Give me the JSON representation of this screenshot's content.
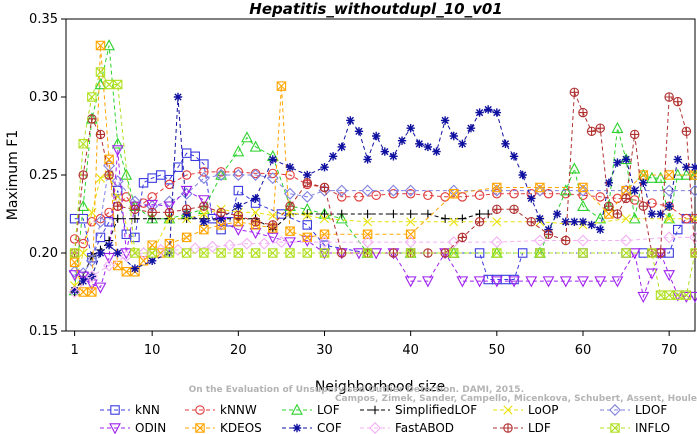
{
  "chart_data": {
    "type": "line",
    "title": "Hepatitis_withoutdupl_10_v01",
    "xlabel": "Neighborhood size",
    "ylabel": "Maximum F1",
    "xlim": [
      0,
      73
    ],
    "ylim": [
      0.15,
      0.35
    ],
    "xticks": [
      1,
      10,
      20,
      30,
      40,
      50,
      60,
      70
    ],
    "yticks": [
      0.15,
      0.2,
      0.25,
      0.3,
      0.35
    ],
    "ytick_labels": [
      "0.15",
      "0.20",
      "0.25",
      "0.30",
      "0.35"
    ],
    "grid": false,
    "credit": [
      "Campos, Zimek, Sander, Campello, Micenkova, Schubert, Assent, Houle",
      "On the Evaluation of Unsupervised Outlier Detection. DAMI, 2015."
    ],
    "series": [
      {
        "name": "kNN",
        "color": "#3a3ae0",
        "marker": "square",
        "x": [
          1,
          2,
          3,
          4,
          5,
          6,
          7,
          8,
          9,
          10,
          11,
          12,
          13,
          14,
          15,
          16,
          17,
          18,
          19,
          20,
          22,
          25,
          28,
          30,
          35,
          40,
          45,
          48,
          49,
          50,
          51,
          52,
          53,
          55,
          60,
          65,
          67,
          69,
          70,
          71,
          72,
          73
        ],
        "y": [
          0.222,
          0.222,
          0.197,
          0.21,
          0.22,
          0.24,
          0.212,
          0.21,
          0.245,
          0.248,
          0.25,
          0.247,
          0.255,
          0.264,
          0.262,
          0.257,
          0.222,
          0.215,
          0.22,
          0.24,
          0.232,
          0.225,
          0.218,
          0.205,
          0.2,
          0.2,
          0.2,
          0.2,
          0.183,
          0.183,
          0.183,
          0.183,
          0.2,
          0.2,
          0.2,
          0.2,
          0.2,
          0.2,
          0.2,
          0.215,
          0.222,
          0.222
        ]
      },
      {
        "name": "kNNW",
        "color": "#e03a3a",
        "marker": "circle",
        "x": [
          1,
          2,
          3,
          4,
          5,
          6,
          7,
          8,
          9,
          10,
          12,
          14,
          16,
          18,
          20,
          22,
          24,
          26,
          28,
          30,
          32,
          34,
          36,
          38,
          40,
          42,
          44,
          46,
          48,
          50,
          52,
          54,
          56,
          58,
          60,
          62,
          64,
          66,
          68,
          70,
          72,
          73
        ],
        "y": [
          0.209,
          0.206,
          0.22,
          0.222,
          0.226,
          0.23,
          0.236,
          0.23,
          0.232,
          0.236,
          0.244,
          0.25,
          0.252,
          0.252,
          0.252,
          0.251,
          0.251,
          0.25,
          0.244,
          0.242,
          0.236,
          0.236,
          0.237,
          0.238,
          0.238,
          0.237,
          0.236,
          0.236,
          0.237,
          0.238,
          0.238,
          0.238,
          0.238,
          0.238,
          0.237,
          0.236,
          0.235,
          0.234,
          0.232,
          0.23,
          0.222,
          0.222
        ]
      },
      {
        "name": "LOF",
        "color": "#2ed22e",
        "marker": "triangle-up",
        "x": [
          1,
          2,
          3,
          4,
          5,
          6,
          7,
          8,
          10,
          12,
          14,
          16,
          18,
          20,
          21,
          22,
          24,
          26,
          28,
          30,
          32,
          35,
          40,
          45,
          50,
          55,
          58,
          59,
          60,
          62,
          63,
          64,
          65,
          66,
          67,
          68,
          69,
          70,
          71,
          72,
          73
        ],
        "y": [
          0.176,
          0.23,
          0.286,
          0.308,
          0.333,
          0.27,
          0.25,
          0.23,
          0.222,
          0.222,
          0.225,
          0.228,
          0.25,
          0.265,
          0.274,
          0.268,
          0.262,
          0.23,
          0.228,
          0.225,
          0.222,
          0.2,
          0.2,
          0.2,
          0.2,
          0.2,
          0.24,
          0.254,
          0.23,
          0.222,
          0.23,
          0.28,
          0.26,
          0.222,
          0.25,
          0.248,
          0.248,
          0.222,
          0.25,
          0.25,
          0.25
        ]
      },
      {
        "name": "SimplifiedLOF",
        "color": "#000000",
        "marker": "plus",
        "x": [
          1,
          2,
          3,
          4,
          5,
          6,
          8,
          10,
          12,
          14,
          16,
          18,
          20,
          22,
          24,
          26,
          28,
          30,
          32,
          35,
          38,
          40,
          42,
          44,
          46,
          48,
          49
        ],
        "y": [
          0.175,
          0.185,
          0.198,
          0.202,
          0.208,
          0.222,
          0.222,
          0.222,
          0.222,
          0.222,
          0.222,
          0.222,
          0.222,
          0.222,
          0.215,
          0.225,
          0.225,
          0.225,
          0.225,
          0.225,
          0.225,
          0.225,
          0.225,
          0.222,
          0.222,
          0.225,
          0.225
        ]
      },
      {
        "name": "LoOP",
        "color": "#e8e00a",
        "marker": "x",
        "x": [
          1,
          2,
          3,
          4,
          5,
          6,
          8,
          10,
          12,
          14,
          16,
          18,
          20,
          22,
          24,
          26,
          28,
          30,
          35,
          40,
          45,
          50,
          55,
          60,
          65,
          70,
          73
        ],
        "y": [
          0.179,
          0.2,
          0.226,
          0.248,
          0.25,
          0.236,
          0.2,
          0.2,
          0.222,
          0.222,
          0.225,
          0.228,
          0.226,
          0.226,
          0.224,
          0.226,
          0.224,
          0.222,
          0.22,
          0.22,
          0.22,
          0.22,
          0.22,
          0.218,
          0.222,
          0.222,
          0.222
        ]
      },
      {
        "name": "LDOF",
        "color": "#8080e0",
        "marker": "diamond",
        "x": [
          1,
          2,
          3,
          4,
          5,
          6,
          8,
          10,
          12,
          14,
          16,
          18,
          20,
          22,
          24,
          26,
          28,
          30,
          32,
          35,
          38,
          40,
          45,
          50,
          55,
          60,
          65,
          70,
          73
        ],
        "y": [
          0.188,
          0.187,
          0.195,
          0.22,
          0.256,
          0.246,
          0.233,
          0.23,
          0.233,
          0.238,
          0.248,
          0.25,
          0.25,
          0.25,
          0.248,
          0.238,
          0.236,
          0.24,
          0.24,
          0.24,
          0.24,
          0.24,
          0.24,
          0.24,
          0.24,
          0.24,
          0.24,
          0.24,
          0.24
        ]
      },
      {
        "name": "ODIN",
        "color": "#a020f0",
        "marker": "triangle-down",
        "x": [
          1,
          2,
          3,
          4,
          5,
          6,
          7,
          8,
          10,
          12,
          14,
          16,
          18,
          20,
          22,
          24,
          26,
          28,
          30,
          32,
          34,
          36,
          38,
          40,
          42,
          44,
          46,
          48,
          50,
          52,
          54,
          56,
          58,
          60,
          62,
          64,
          66,
          67,
          68,
          69,
          70,
          71,
          72,
          73
        ],
        "y": [
          0.186,
          0.185,
          0.18,
          0.178,
          0.197,
          0.266,
          0.2,
          0.23,
          0.231,
          0.23,
          0.24,
          0.234,
          0.22,
          0.215,
          0.213,
          0.21,
          0.207,
          0.208,
          0.2,
          0.2,
          0.2,
          0.2,
          0.2,
          0.182,
          0.182,
          0.2,
          0.182,
          0.182,
          0.182,
          0.182,
          0.182,
          0.182,
          0.182,
          0.182,
          0.182,
          0.182,
          0.2,
          0.172,
          0.187,
          0.2,
          0.186,
          0.173,
          0.172,
          0.172
        ]
      },
      {
        "name": "KDEOS",
        "color": "#ffa500",
        "marker": "square-x",
        "x": [
          1,
          2,
          3,
          4,
          5,
          6,
          7,
          8,
          9,
          10,
          11,
          12,
          14,
          16,
          18,
          20,
          22,
          24,
          25,
          26,
          28,
          30,
          35,
          40,
          45,
          50,
          55,
          60,
          63,
          65,
          67,
          70,
          73
        ],
        "y": [
          0.194,
          0.175,
          0.175,
          0.333,
          0.26,
          0.192,
          0.188,
          0.188,
          0.195,
          0.205,
          0.2,
          0.206,
          0.21,
          0.215,
          0.218,
          0.22,
          0.218,
          0.216,
          0.307,
          0.214,
          0.21,
          0.212,
          0.212,
          0.212,
          0.238,
          0.242,
          0.242,
          0.242,
          0.225,
          0.24,
          0.25,
          0.25,
          0.25
        ]
      },
      {
        "name": "COF",
        "color": "#1010a0",
        "marker": "star",
        "x": [
          1,
          2,
          3,
          4,
          5,
          6,
          8,
          10,
          12,
          13,
          14,
          16,
          18,
          20,
          22,
          24,
          26,
          28,
          30,
          31,
          32,
          33,
          34,
          35,
          36,
          37,
          38,
          39,
          40,
          41,
          42,
          43,
          44,
          45,
          46,
          47,
          48,
          49,
          50,
          51,
          52,
          53,
          54,
          55,
          56,
          57,
          58,
          59,
          60,
          61,
          62,
          63,
          64,
          65,
          66,
          67,
          68,
          69,
          70,
          71,
          72,
          73
        ],
        "y": [
          0.176,
          0.182,
          0.185,
          0.2,
          0.205,
          0.2,
          0.19,
          0.195,
          0.2,
          0.3,
          0.225,
          0.22,
          0.222,
          0.23,
          0.235,
          0.26,
          0.255,
          0.25,
          0.255,
          0.262,
          0.268,
          0.285,
          0.278,
          0.26,
          0.275,
          0.265,
          0.262,
          0.272,
          0.28,
          0.27,
          0.268,
          0.265,
          0.285,
          0.275,
          0.27,
          0.28,
          0.29,
          0.292,
          0.29,
          0.27,
          0.262,
          0.25,
          0.235,
          0.222,
          0.215,
          0.225,
          0.22,
          0.22,
          0.22,
          0.218,
          0.215,
          0.245,
          0.258,
          0.26,
          0.24,
          0.245,
          0.225,
          0.225,
          0.23,
          0.26,
          0.255,
          0.255
        ]
      },
      {
        "name": "FastABOD",
        "color": "#f4b0f4",
        "marker": "diamond",
        "x": [
          1,
          3,
          5,
          7,
          9,
          11,
          13,
          15,
          17,
          19,
          21,
          23,
          25,
          30,
          35,
          40,
          45,
          50,
          55,
          60,
          65,
          70,
          73
        ],
        "y": [
          0.175,
          0.185,
          0.192,
          0.198,
          0.2,
          0.202,
          0.202,
          0.203,
          0.204,
          0.205,
          0.206,
          0.206,
          0.207,
          0.207,
          0.207,
          0.207,
          0.207,
          0.207,
          0.208,
          0.208,
          0.208,
          0.21,
          0.21
        ]
      },
      {
        "name": "LDF",
        "color": "#b03030",
        "marker": "circle-plus",
        "x": [
          1,
          2,
          3,
          4,
          5,
          6,
          8,
          10,
          12,
          14,
          16,
          18,
          20,
          22,
          24,
          26,
          28,
          30,
          32,
          35,
          38,
          40,
          42,
          44,
          46,
          48,
          50,
          52,
          54,
          56,
          58,
          59,
          60,
          61,
          62,
          63,
          64,
          65,
          66,
          67,
          68,
          69,
          70,
          71,
          72,
          73
        ],
        "y": [
          0.2,
          0.25,
          0.286,
          0.276,
          0.25,
          0.23,
          0.228,
          0.226,
          0.226,
          0.228,
          0.23,
          0.226,
          0.224,
          0.22,
          0.218,
          0.23,
          0.245,
          0.242,
          0.2,
          0.2,
          0.2,
          0.2,
          0.2,
          0.2,
          0.21,
          0.22,
          0.228,
          0.228,
          0.22,
          0.212,
          0.208,
          0.303,
          0.29,
          0.278,
          0.28,
          0.23,
          0.225,
          0.235,
          0.276,
          0.23,
          0.2,
          0.2,
          0.3,
          0.297,
          0.278,
          0.2
        ]
      },
      {
        "name": "INFLO",
        "color": "#b0e020",
        "marker": "hourglass",
        "x": [
          1,
          2,
          3,
          4,
          5,
          6,
          8,
          10,
          12,
          14,
          16,
          18,
          20,
          22,
          24,
          26,
          28,
          30,
          35,
          40,
          45,
          50,
          55,
          60,
          65,
          68,
          69,
          70,
          71,
          72,
          73
        ],
        "y": [
          0.2,
          0.27,
          0.3,
          0.316,
          0.308,
          0.308,
          0.2,
          0.2,
          0.2,
          0.2,
          0.2,
          0.2,
          0.2,
          0.2,
          0.2,
          0.2,
          0.2,
          0.2,
          0.2,
          0.2,
          0.2,
          0.2,
          0.2,
          0.2,
          0.2,
          0.2,
          0.173,
          0.173,
          0.173,
          0.173,
          0.2
        ]
      }
    ]
  }
}
